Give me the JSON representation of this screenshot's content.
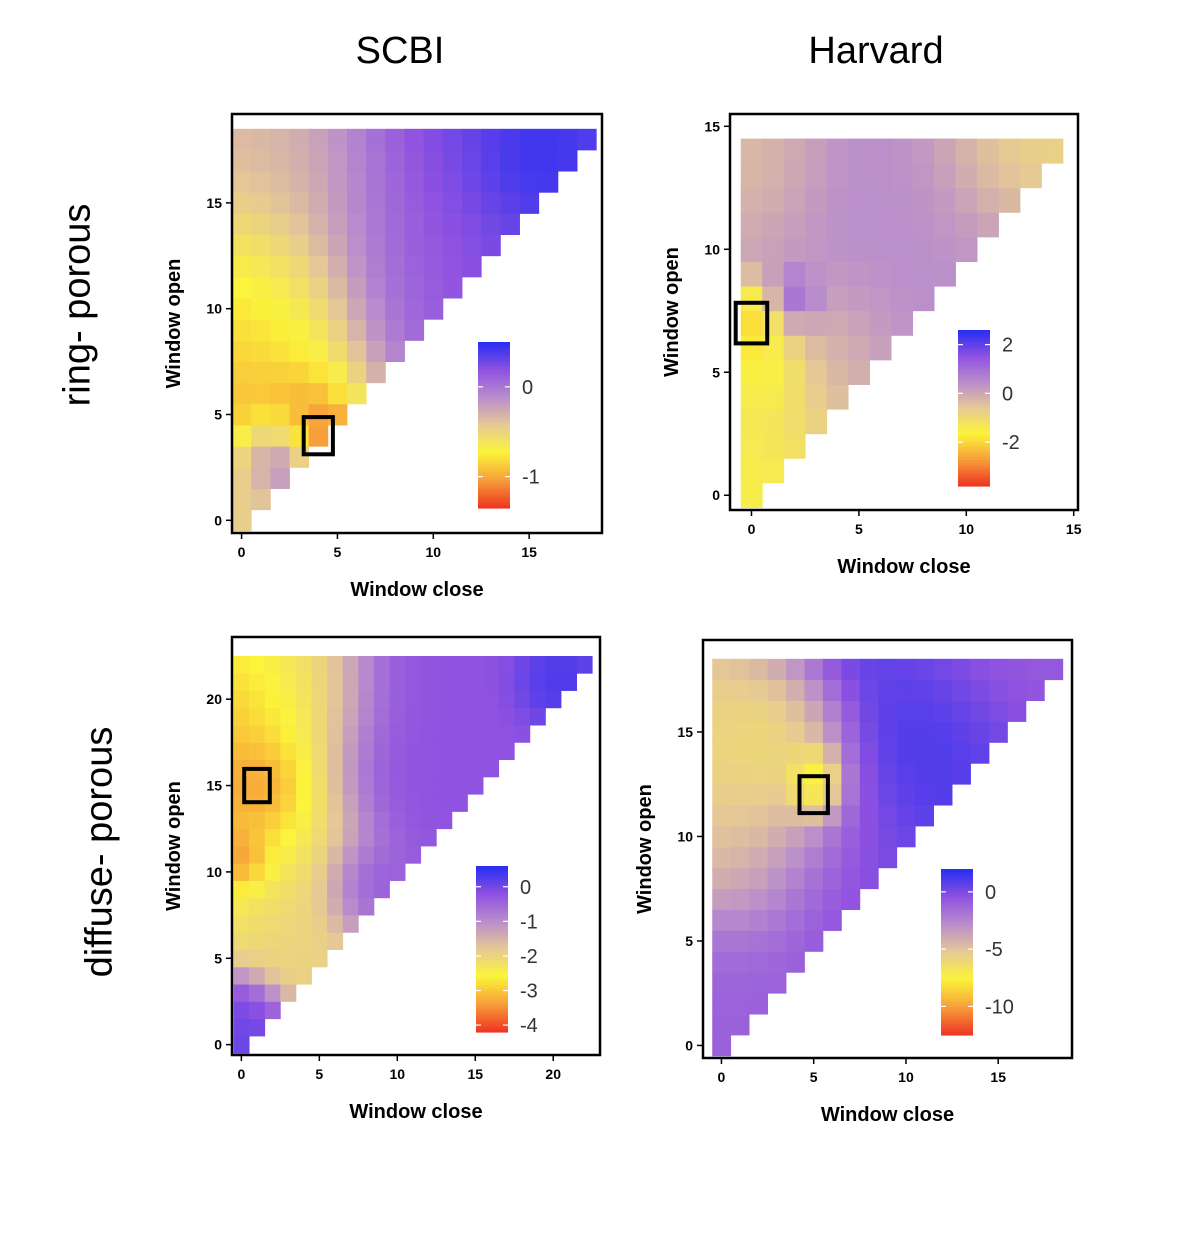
{
  "figure": {
    "columns": [
      "SCBI",
      "Harvard"
    ],
    "rows": [
      "ring- porous",
      "diffuse- porous"
    ]
  },
  "colormap": {
    "stops": [
      "#ee3a24",
      "#f7a13a",
      "#fbf43a",
      "#e6c995",
      "#b98ecc",
      "#9052e0",
      "#2a2ff2"
    ]
  },
  "chart_data": [
    {
      "id": "scbi-ring",
      "type": "heatmap",
      "row": "ring- porous",
      "column": "SCBI",
      "xlabel": "Window close",
      "ylabel": "Window open",
      "xticks": [
        0,
        5,
        10,
        15
      ],
      "yticks": [
        0,
        5,
        10,
        15
      ],
      "xlim": [
        -0.5,
        18.8
      ],
      "ylim": [
        -0.6,
        19.2
      ],
      "n": 19,
      "vmin": -1.35,
      "vmax": 0.5,
      "legend_ticks": [
        0,
        -1
      ],
      "highlight": {
        "x": 4,
        "y": 4
      },
      "field": [
        {
          "x": 4,
          "y": 4,
          "v": -1.3,
          "r": 0.8
        },
        {
          "x": 3,
          "y": 5,
          "v": -1.1,
          "r": 1.2
        },
        {
          "x": 0,
          "y": 7.5,
          "v": -1.0,
          "r": 3.5
        },
        {
          "x": 1,
          "y": 10,
          "v": -0.8,
          "r": 2.5
        },
        {
          "x": 3,
          "y": 14,
          "v": -0.35,
          "r": 4
        },
        {
          "x": 15,
          "y": 17,
          "v": 0.5,
          "r": 1.5
        },
        {
          "x": 12,
          "y": 16,
          "v": 0.35,
          "r": 4
        },
        {
          "x": 9,
          "y": 12,
          "v": 0.15,
          "r": 3
        },
        {
          "x": 2,
          "y": 3,
          "v": 0.2,
          "r": 1.2
        },
        {
          "x": 0,
          "y": 1,
          "v": -0.4,
          "r": 1.5
        }
      ]
    },
    {
      "id": "harvard-ring",
      "type": "heatmap",
      "row": "ring- porous",
      "column": "Harvard",
      "xlabel": "Window close",
      "ylabel": "Window open",
      "xticks": [
        0,
        5,
        10,
        15
      ],
      "yticks": [
        0,
        5,
        10,
        15
      ],
      "xlim": [
        -1,
        15.2
      ],
      "ylim": [
        -0.6,
        15.5
      ],
      "n": 15,
      "vmin": -3.8,
      "vmax": 2.6,
      "legend_ticks": [
        2,
        0,
        -2
      ],
      "highlight": {
        "x": 0,
        "y": 7
      },
      "field": [
        {
          "x": 0,
          "y": 7,
          "v": -3.6,
          "r": 1
        },
        {
          "x": 1,
          "y": 5,
          "v": -2.6,
          "r": 1
        },
        {
          "x": 0,
          "y": 3,
          "v": -1.6,
          "r": 2.5
        },
        {
          "x": 2,
          "y": 8,
          "v": 2.5,
          "r": 0.7
        },
        {
          "x": 4,
          "y": 10,
          "v": 0.5,
          "r": 4
        },
        {
          "x": 9,
          "y": 12,
          "v": 0.4,
          "r": 3
        },
        {
          "x": 3,
          "y": 6,
          "v": -0.4,
          "r": 2
        },
        {
          "x": 0,
          "y": 13,
          "v": -0.6,
          "r": 2
        },
        {
          "x": 12,
          "y": 14,
          "v": -1.2,
          "r": 2
        }
      ]
    },
    {
      "id": "scbi-diffuse",
      "type": "heatmap",
      "row": "diffuse- porous",
      "column": "SCBI",
      "xlabel": "Window close",
      "ylabel": "Window open",
      "xticks": [
        0,
        5,
        10,
        15,
        20
      ],
      "yticks": [
        0,
        5,
        10,
        15,
        20
      ],
      "xlim": [
        -0.6,
        23
      ],
      "ylim": [
        -0.6,
        23.6
      ],
      "n": 23,
      "vmin": -4.2,
      "vmax": 0.6,
      "legend_ticks": [
        0,
        -1,
        -2,
        -3,
        -4
      ],
      "highlight": {
        "x": 1,
        "y": 15
      },
      "field": [
        {
          "x": 1,
          "y": 15,
          "v": -3.9,
          "r": 1.5
        },
        {
          "x": 0,
          "y": 11,
          "v": -4.0,
          "r": 1
        },
        {
          "x": 0,
          "y": 18,
          "v": -3.3,
          "r": 3
        },
        {
          "x": 1,
          "y": 13,
          "v": -3.0,
          "r": 3
        },
        {
          "x": 3,
          "y": 21,
          "v": -2.5,
          "r": 3
        },
        {
          "x": 4,
          "y": 8,
          "v": -2.0,
          "r": 3
        },
        {
          "x": 20,
          "y": 21,
          "v": 0.6,
          "r": 1.5
        },
        {
          "x": 14,
          "y": 19,
          "v": -0.2,
          "r": 6
        },
        {
          "x": 8,
          "y": 9,
          "v": 0.0,
          "r": 1.5
        },
        {
          "x": 0,
          "y": 1,
          "v": 0.1,
          "r": 1.5
        }
      ]
    },
    {
      "id": "harvard-diffuse",
      "type": "heatmap",
      "row": "diffuse- porous",
      "column": "Harvard",
      "xlabel": "Window close",
      "ylabel": "Window open",
      "xticks": [
        0,
        5,
        10,
        15
      ],
      "yticks": [
        0,
        5,
        10,
        15
      ],
      "xlim": [
        -1,
        19
      ],
      "ylim": [
        -0.6,
        19.4
      ],
      "n": 19,
      "vmin": -12.5,
      "vmax": 2,
      "legend_ticks": [
        0,
        -5,
        -10
      ],
      "highlight": {
        "x": 5,
        "y": 12
      },
      "field": [
        {
          "x": 5,
          "y": 13,
          "v": -12,
          "r": 0.8
        },
        {
          "x": 5,
          "y": 12,
          "v": -10,
          "r": 0.8
        },
        {
          "x": 3,
          "y": 14,
          "v": -8,
          "r": 2
        },
        {
          "x": 1,
          "y": 14,
          "v": -6,
          "r": 3
        },
        {
          "x": 2,
          "y": 10,
          "v": -5,
          "r": 3
        },
        {
          "x": 12,
          "y": 15,
          "v": 1.8,
          "r": 2
        },
        {
          "x": 11,
          "y": 15,
          "v": 1.0,
          "r": 5
        },
        {
          "x": 7,
          "y": 7,
          "v": 0.0,
          "r": 3
        },
        {
          "x": 1,
          "y": 2,
          "v": -1.0,
          "r": 3
        },
        {
          "x": 15,
          "y": 18,
          "v": -1.5,
          "r": 3
        }
      ]
    }
  ]
}
